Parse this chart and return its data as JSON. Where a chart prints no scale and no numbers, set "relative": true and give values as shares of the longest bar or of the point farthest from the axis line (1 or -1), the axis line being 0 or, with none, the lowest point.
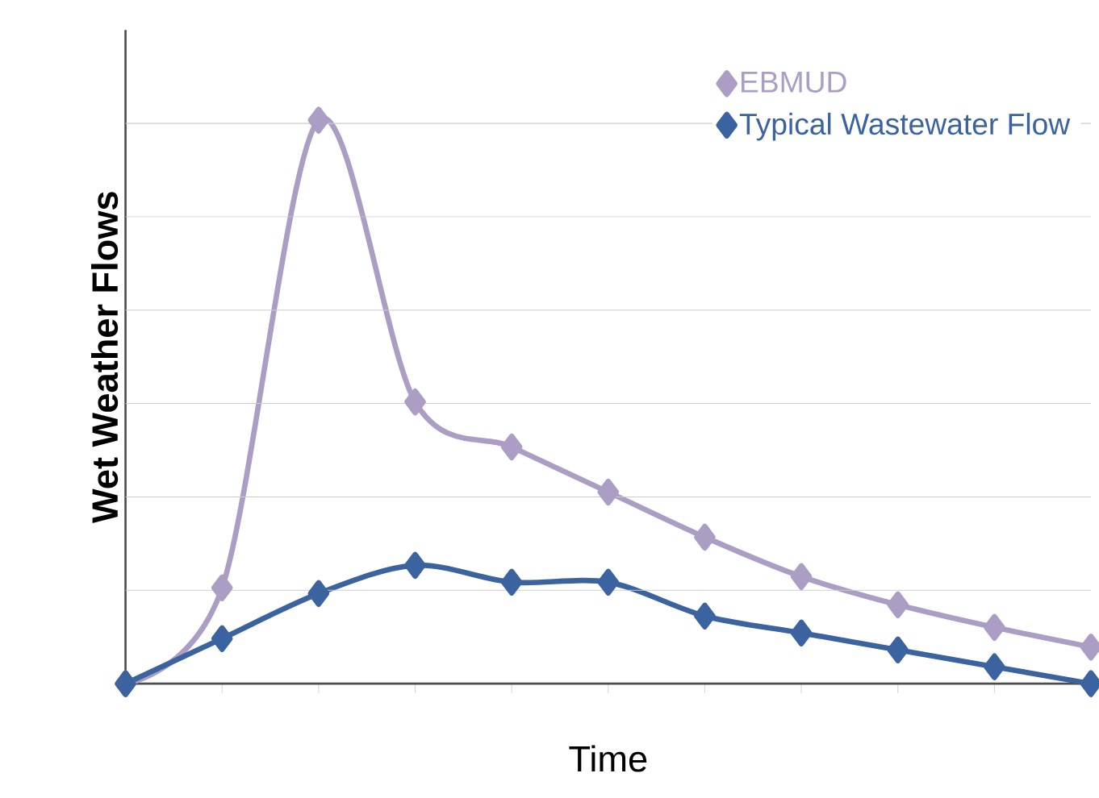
{
  "chart_data": {
    "type": "line",
    "xlabel": "Time",
    "ylabel": "Wet Weather Flows",
    "relative": true,
    "grid": "y",
    "legend": "top right",
    "marker": "diamond",
    "line_style": "solid",
    "categories": [
      null,
      null,
      null,
      null,
      null,
      null,
      null,
      null,
      null,
      null,
      null
    ],
    "series": [
      {
        "name": "EBMUD",
        "color": "#ab9dc4",
        "values": [
          0,
          0.17,
          1,
          0.5,
          0.42,
          0.34,
          0.26,
          0.19,
          0.14,
          0.1,
          0.065
        ]
      },
      {
        "name": "Typical Wastewater Flow",
        "color": "#3b63a0",
        "values": [
          0,
          0.08,
          0.16,
          0.21,
          0.18,
          0.18,
          0.12,
          0.09,
          0.06,
          0.03,
          0
        ]
      }
    ]
  }
}
